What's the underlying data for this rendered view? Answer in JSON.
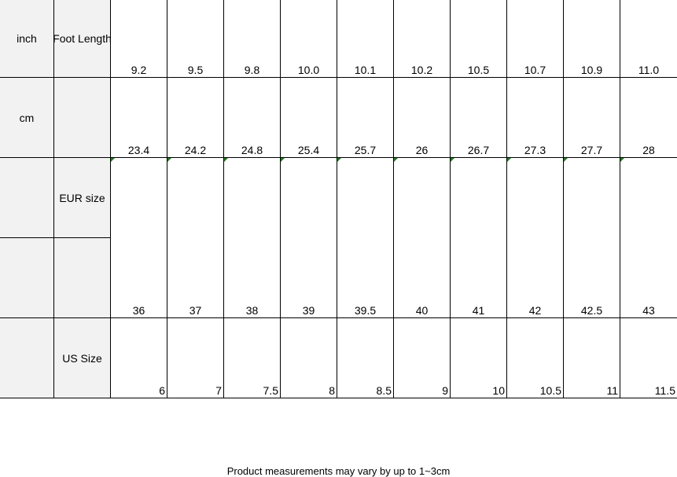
{
  "rows": {
    "inch": {
      "label": "inch",
      "sublabel": "Foot Length",
      "values": [
        "9.2",
        "9.5",
        "9.8",
        "10.0",
        "10.1",
        "10.2",
        "10.5",
        "10.7",
        "10.9",
        "11.0"
      ]
    },
    "cm": {
      "label": "cm",
      "sublabel": "",
      "values": [
        "23.4",
        "24.2",
        "24.8",
        "25.4",
        "25.7",
        "26",
        "26.7",
        "27.3",
        "27.7",
        "28"
      ]
    },
    "eur": {
      "label": "",
      "sublabel": "EUR size",
      "values": [
        "36",
        "37",
        "38",
        "39",
        "39.5",
        "40",
        "41",
        "42",
        "42.5",
        "43"
      ]
    },
    "us": {
      "label": "",
      "sublabel": "US Size",
      "values": [
        "6",
        "7",
        "7.5",
        "8",
        "8.5",
        "9",
        "10",
        "10.5",
        "11",
        "11.5"
      ]
    }
  },
  "footer": "Product measurements may vary by up to 1~3cm",
  "colors": {
    "header_fill": "#f2f2f2",
    "error_indicator": "#1e7b1e"
  }
}
